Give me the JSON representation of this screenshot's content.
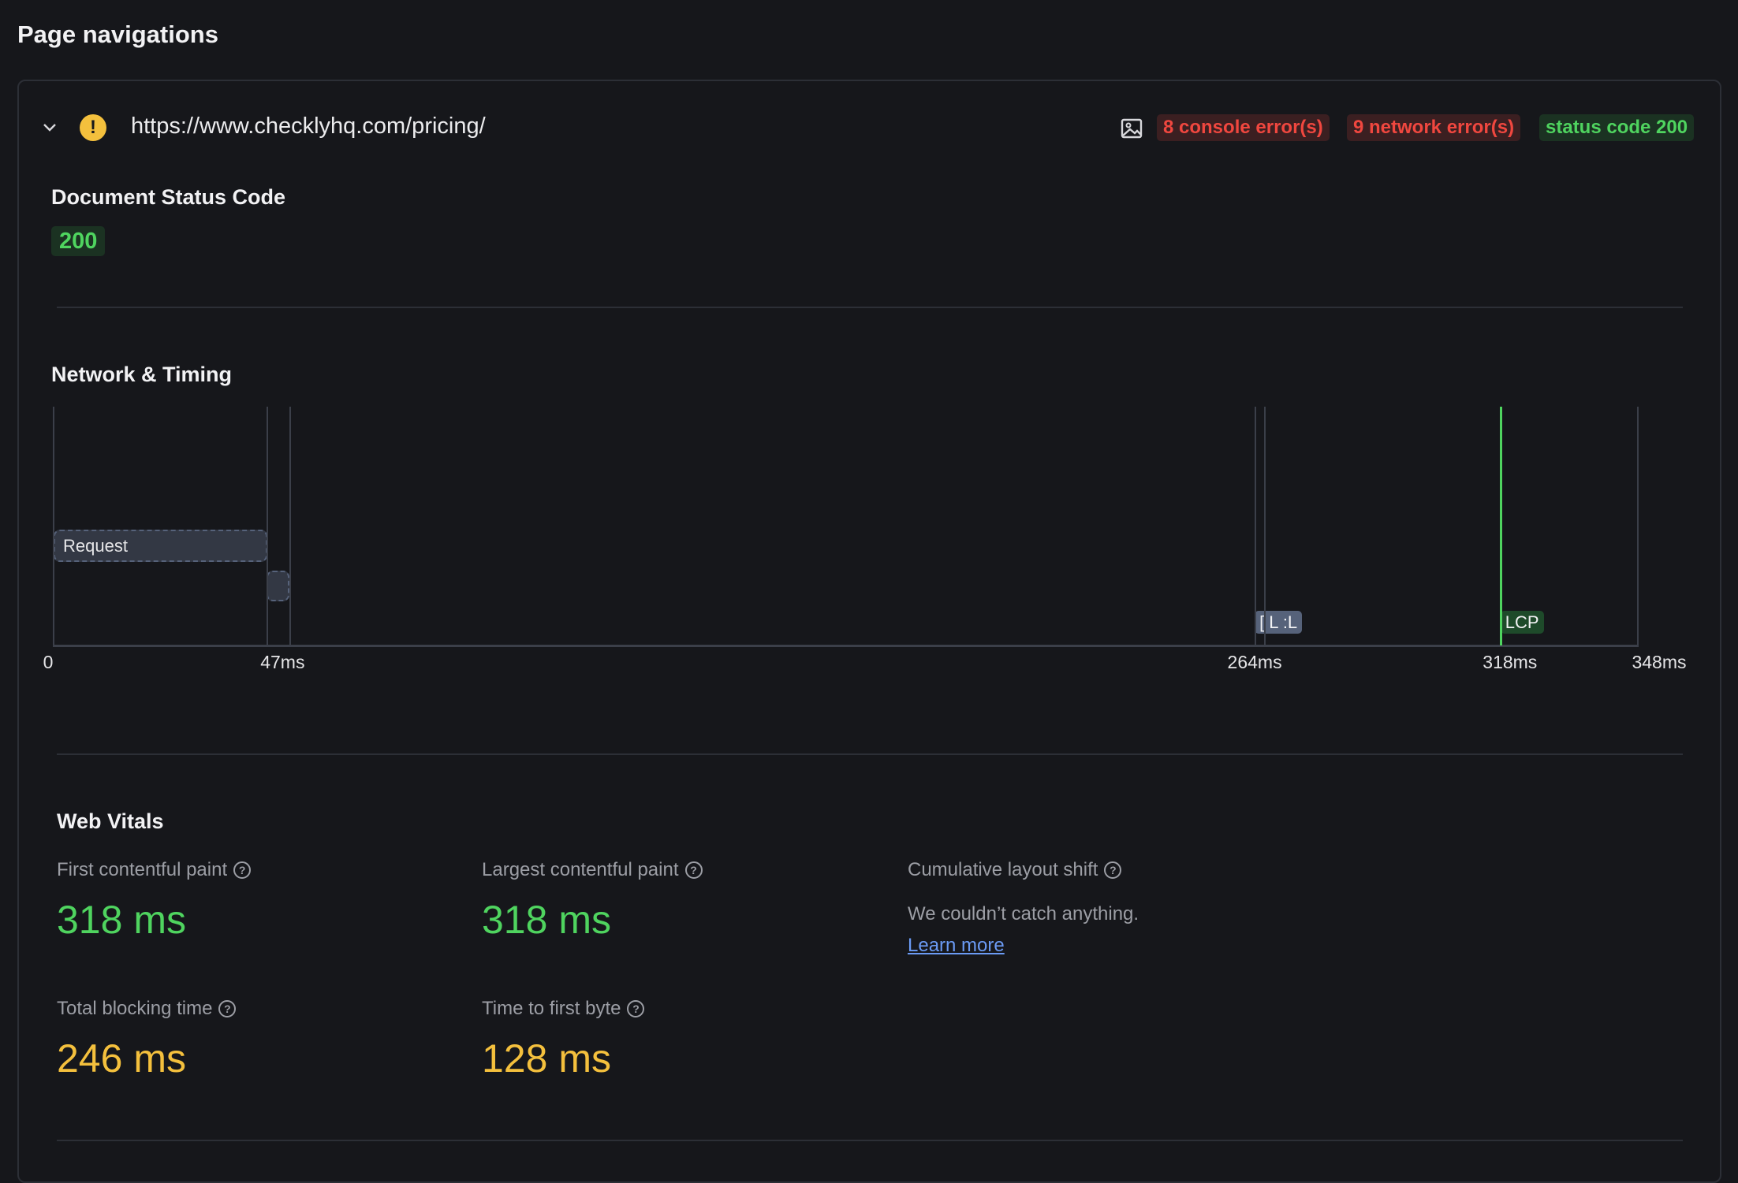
{
  "page_title": "Page navigations",
  "navigation": {
    "url": "https://www.checklyhq.com/pricing/",
    "status_icon": "warning-icon",
    "screenshot_icon": "image-icon",
    "badges": {
      "console_errors": "8 console error(s)",
      "network_errors": "9 network error(s)",
      "status": "status code 200"
    }
  },
  "document_status": {
    "heading": "Document Status Code",
    "code": "200"
  },
  "timing": {
    "heading": "Network & Timing"
  },
  "chart_data": {
    "type": "timeline",
    "unit": "ms",
    "xlim": [
      0,
      348
    ],
    "tick_labels": [
      "0",
      "47ms",
      "264ms",
      "318ms",
      "348ms"
    ],
    "ticks": [
      0,
      47,
      264,
      318,
      348
    ],
    "bars": [
      {
        "label": "Request",
        "start": 0,
        "end": 47
      },
      {
        "label": "",
        "start": 47,
        "end": 52
      }
    ],
    "markers": [
      {
        "label": "[ L :L",
        "time": 264,
        "color": "#56627a"
      },
      {
        "label": "LCP",
        "time": 318,
        "color": "#4fd45f"
      }
    ],
    "guide_lines": [
      0,
      47,
      52,
      264,
      266,
      348
    ]
  },
  "web_vitals": {
    "heading": "Web Vitals",
    "fcp": {
      "label": "First contentful paint",
      "value": "318 ms"
    },
    "lcp": {
      "label": "Largest contentful paint",
      "value": "318 ms"
    },
    "cls": {
      "label": "Cumulative layout shift",
      "message": "We couldn’t catch anything.",
      "link": "Learn more"
    },
    "tbt": {
      "label": "Total blocking time",
      "value": "246 ms"
    },
    "ttfb": {
      "label": "Time to first byte",
      "value": "128 ms"
    }
  },
  "colors": {
    "good": "#4fd45f",
    "warn": "#f4c03d",
    "error": "#f0473f"
  }
}
